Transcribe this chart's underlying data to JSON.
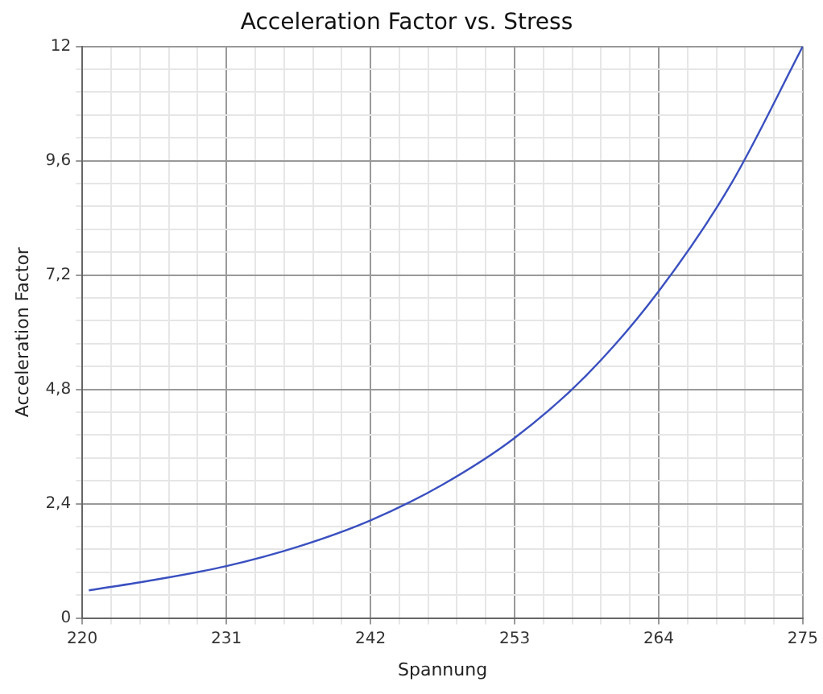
{
  "chart_data": {
    "type": "line",
    "title": "Acceleration Factor vs. Stress",
    "xlabel": "Spannung",
    "ylabel": "Acceleration Factor",
    "x": [
      220.5,
      225.5,
      231,
      236.5,
      242,
      247.5,
      253,
      258.5,
      264,
      269.5,
      275
    ],
    "series": [
      {
        "color": "#3a50c0",
        "values": [
          0.58,
          0.8,
          1.09,
          1.5,
          2.05,
          2.8,
          3.78,
          5.1,
          6.86,
          9.1,
          12
        ]
      }
    ],
    "xlim": [
      220,
      275
    ],
    "xticks": [
      220,
      {
        "value": 222.2,
        "label": null
      },
      {
        "value": 224.4,
        "label": null
      },
      {
        "value": 226.6,
        "label": null
      },
      {
        "value": 228.8,
        "label": null
      },
      231,
      {
        "value": 233.2,
        "label": null
      },
      {
        "value": 235.4,
        "label": null
      },
      {
        "value": 237.6,
        "label": null
      },
      {
        "value": 239.8,
        "label": null
      },
      242,
      {
        "value": 244.2,
        "label": null
      },
      {
        "value": 246.4,
        "label": null
      },
      {
        "value": 248.6,
        "label": null
      },
      {
        "value": 250.8,
        "label": null
      },
      253,
      {
        "value": 255.2,
        "label": null
      },
      {
        "value": 257.4,
        "label": null
      },
      {
        "value": 259.6,
        "label": null
      },
      {
        "value": 261.8,
        "label": null
      },
      264,
      {
        "value": 266.2,
        "label": null
      },
      {
        "value": 268.4,
        "label": null
      },
      {
        "value": 270.6,
        "label": null
      },
      {
        "value": 272.8,
        "label": null
      },
      275
    ],
    "ylim": [
      0,
      12
    ],
    "yticks": [
      0,
      {
        "value": 0.48,
        "label": null
      },
      {
        "value": 0.96,
        "label": null
      },
      {
        "value": 1.44,
        "label": null
      },
      {
        "value": 1.92,
        "label": null
      },
      {
        "value": 2.4,
        "label": "2,4"
      },
      {
        "value": 2.88,
        "label": null
      },
      {
        "value": 3.36,
        "label": null
      },
      {
        "value": 3.84,
        "label": null
      },
      {
        "value": 4.32,
        "label": null
      },
      {
        "value": 4.8,
        "label": "4,8"
      },
      {
        "value": 5.28,
        "label": null
      },
      {
        "value": 5.76,
        "label": null
      },
      {
        "value": 6.24,
        "label": null
      },
      {
        "value": 6.72,
        "label": null
      },
      {
        "value": 7.2,
        "label": "7,2"
      },
      {
        "value": 7.68,
        "label": null
      },
      {
        "value": 8.16,
        "label": null
      },
      {
        "value": 8.64,
        "label": null
      },
      {
        "value": 9.12,
        "label": null
      },
      {
        "value": 9.6,
        "label": "9,6"
      },
      {
        "value": 10.08,
        "label": null
      },
      {
        "value": 10.56,
        "label": null
      },
      {
        "value": 11.04,
        "label": null
      },
      {
        "value": 11.52,
        "label": null
      },
      12
    ],
    "grid": true,
    "legend": false,
    "marker": "none",
    "line_style": "solid"
  }
}
